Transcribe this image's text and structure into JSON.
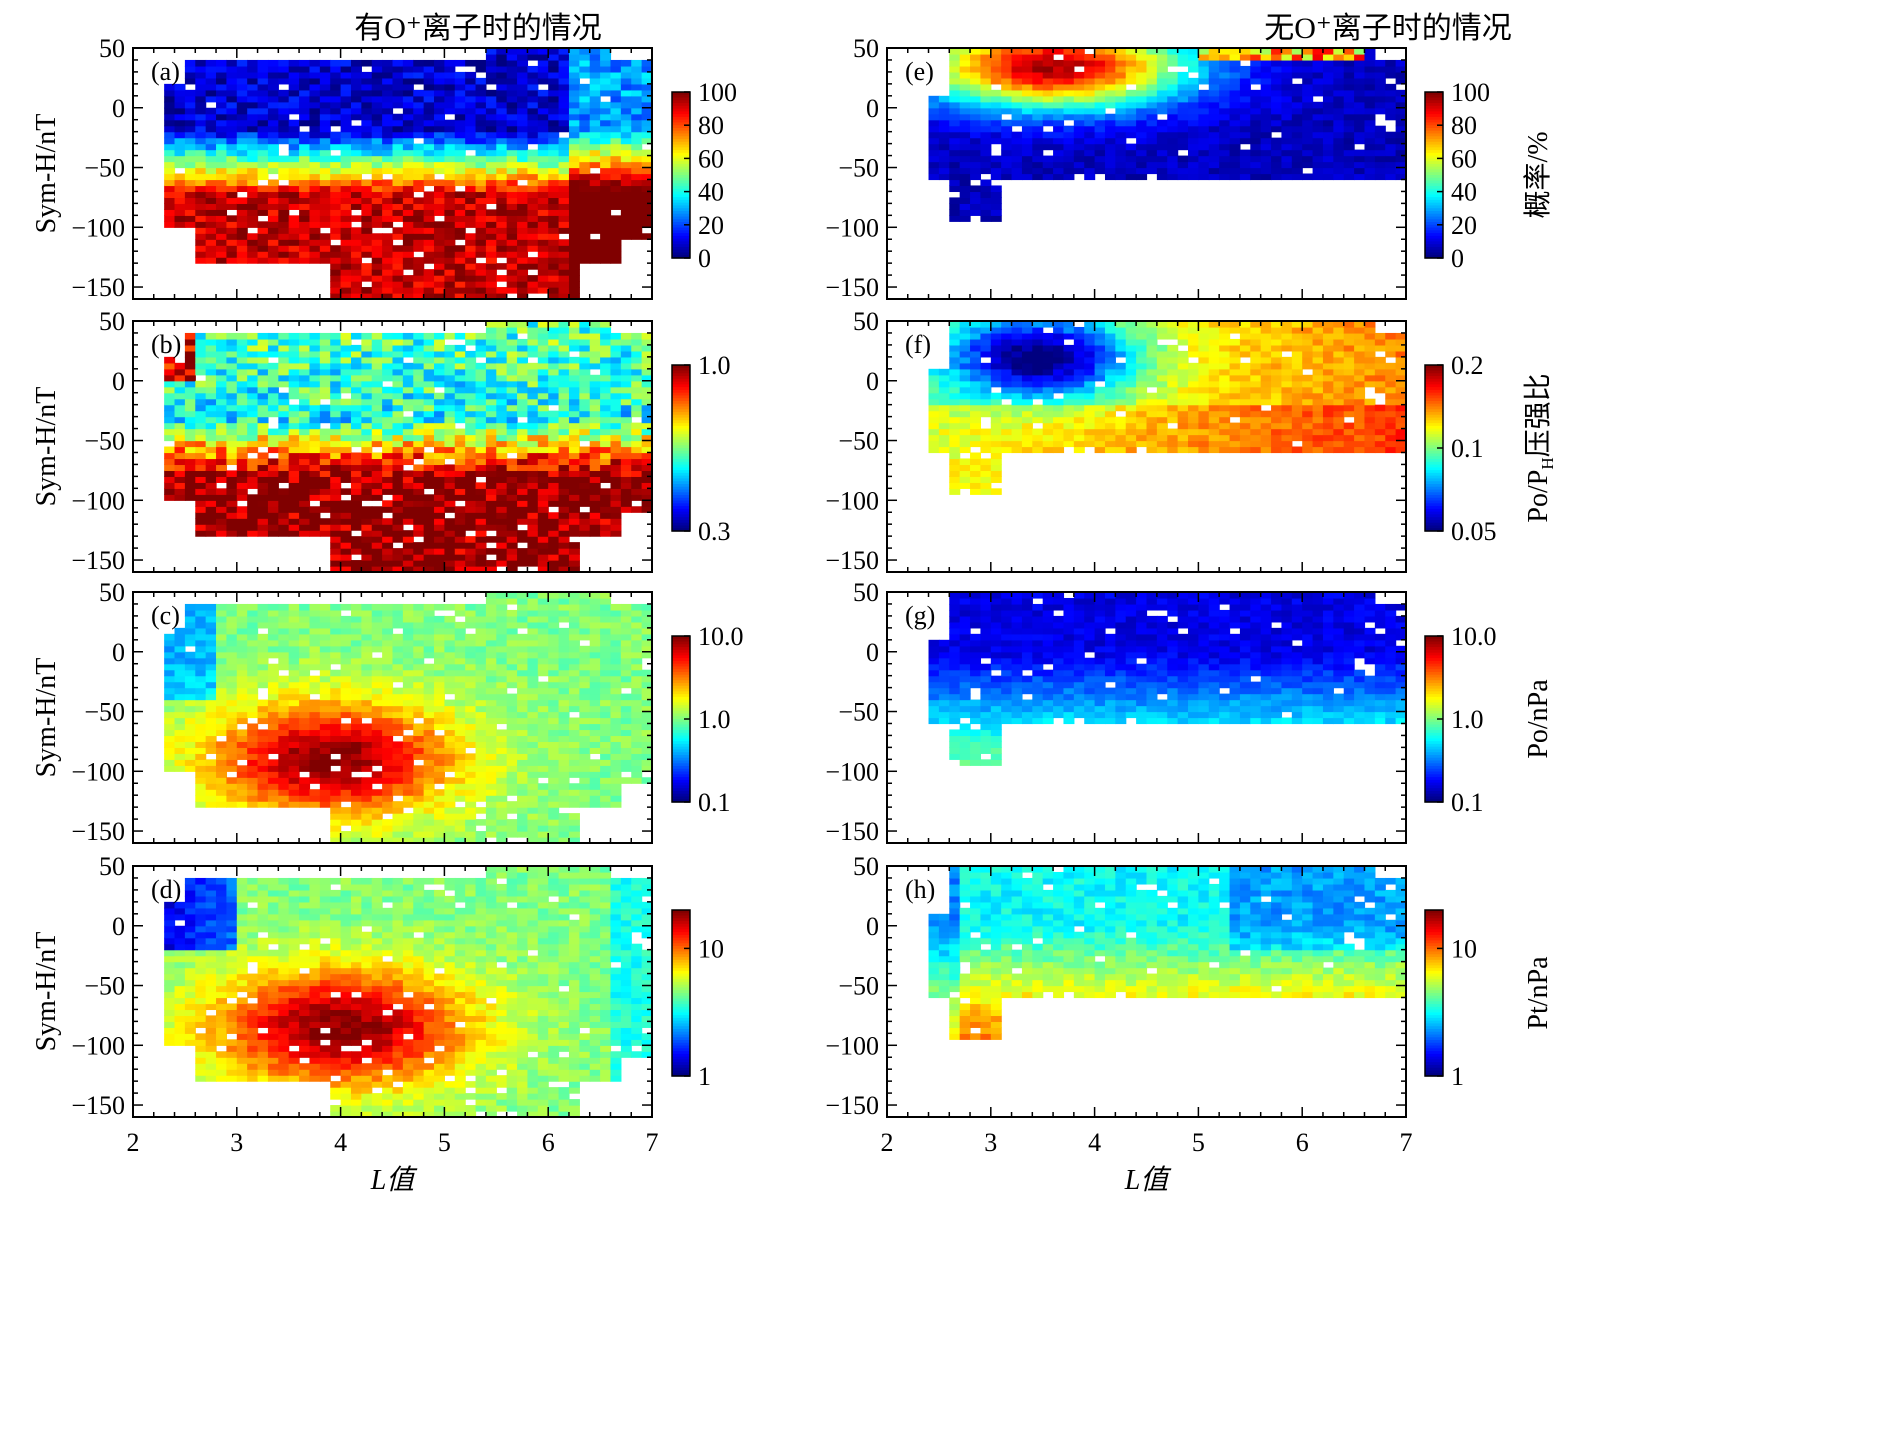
{
  "figure": {
    "column_titles": [
      "有O⁺离子时的情况",
      "无O⁺离子时的情况"
    ],
    "x_axis_label": "L值",
    "y_axis_label": "Sym-H/nT"
  },
  "chart_data": [
    {
      "type": "heatmap",
      "panel": "(a)",
      "column": 0,
      "row": 0,
      "pattern": "prob_with",
      "xlabel": "",
      "ylabel": "Sym-H/nT",
      "xlim": [
        2,
        7
      ],
      "ylim": [
        -160,
        50
      ],
      "xticks": [
        "2",
        "3",
        "4",
        "5",
        "6",
        "7"
      ],
      "yticks": [
        "50",
        "0",
        "−50",
        "−100",
        "−150"
      ],
      "colorbar": {
        "label": "",
        "scale": "linear",
        "range": [
          0,
          100
        ],
        "ticks": [
          "100",
          "80",
          "60",
          "40",
          "20",
          "0"
        ]
      }
    },
    {
      "type": "heatmap",
      "panel": "(b)",
      "column": 0,
      "row": 1,
      "pattern": "ratio_with",
      "xlabel": "",
      "ylabel": "Sym-H/nT",
      "xlim": [
        2,
        7
      ],
      "ylim": [
        -160,
        50
      ],
      "xticks": [
        "2",
        "3",
        "4",
        "5",
        "6",
        "7"
      ],
      "yticks": [
        "50",
        "0",
        "−50",
        "−100",
        "−150"
      ],
      "colorbar": {
        "label": "",
        "scale": "log",
        "range": [
          0.3,
          1.0
        ],
        "ticks": [
          "1.0",
          "0.3"
        ]
      }
    },
    {
      "type": "heatmap",
      "panel": "(c)",
      "column": 0,
      "row": 2,
      "pattern": "po_with",
      "xlabel": "",
      "ylabel": "Sym-H/nT",
      "xlim": [
        2,
        7
      ],
      "ylim": [
        -160,
        50
      ],
      "xticks": [
        "2",
        "3",
        "4",
        "5",
        "6",
        "7"
      ],
      "yticks": [
        "50",
        "0",
        "−50",
        "−100",
        "−150"
      ],
      "colorbar": {
        "label": "",
        "scale": "log",
        "range": [
          0.1,
          10.0
        ],
        "ticks": [
          "10.0",
          "1.0",
          "0.1"
        ]
      }
    },
    {
      "type": "heatmap",
      "panel": "(d)",
      "column": 0,
      "row": 3,
      "pattern": "pt_with",
      "xlabel": "L值",
      "ylabel": "Sym-H/nT",
      "xlim": [
        2,
        7
      ],
      "ylim": [
        -160,
        50
      ],
      "xticks": [
        "2",
        "3",
        "4",
        "5",
        "6",
        "7"
      ],
      "yticks": [
        "50",
        "0",
        "−50",
        "−100",
        "−150"
      ],
      "colorbar": {
        "label": "",
        "scale": "log",
        "range": [
          1,
          20
        ],
        "ticks": [
          "10",
          "1"
        ]
      }
    },
    {
      "type": "heatmap",
      "panel": "(e)",
      "column": 1,
      "row": 0,
      "pattern": "prob_without",
      "xlabel": "",
      "ylabel": "",
      "xlim": [
        2,
        7
      ],
      "ylim": [
        -160,
        50
      ],
      "xticks": [
        "2",
        "3",
        "4",
        "5",
        "6",
        "7"
      ],
      "yticks": [
        "50",
        "0",
        "−50",
        "−100",
        "−150"
      ],
      "colorbar": {
        "label": "概率/%",
        "scale": "linear",
        "range": [
          0,
          100
        ],
        "ticks": [
          "100",
          "80",
          "60",
          "40",
          "20",
          "0"
        ]
      }
    },
    {
      "type": "heatmap",
      "panel": "(f)",
      "column": 1,
      "row": 1,
      "pattern": "ratio_without",
      "xlabel": "",
      "ylabel": "",
      "xlim": [
        2,
        7
      ],
      "ylim": [
        -160,
        50
      ],
      "xticks": [
        "2",
        "3",
        "4",
        "5",
        "6",
        "7"
      ],
      "yticks": [
        "50",
        "0",
        "−50",
        "−100",
        "−150"
      ],
      "colorbar": {
        "label": "Po/P",
        "label_sub": "H",
        "label_suffix": "压强比",
        "scale": "log",
        "range": [
          0.05,
          0.2
        ],
        "ticks": [
          "0.2",
          "0.1",
          "0.05"
        ]
      }
    },
    {
      "type": "heatmap",
      "panel": "(g)",
      "column": 1,
      "row": 2,
      "pattern": "po_without",
      "xlabel": "",
      "ylabel": "",
      "xlim": [
        2,
        7
      ],
      "ylim": [
        -160,
        50
      ],
      "xticks": [
        "2",
        "3",
        "4",
        "5",
        "6",
        "7"
      ],
      "yticks": [
        "50",
        "0",
        "−50",
        "−100",
        "−150"
      ],
      "colorbar": {
        "label": "Po/nPa",
        "scale": "log",
        "range": [
          0.1,
          10.0
        ],
        "ticks": [
          "10.0",
          "1.0",
          "0.1"
        ]
      }
    },
    {
      "type": "heatmap",
      "panel": "(h)",
      "column": 1,
      "row": 3,
      "pattern": "pt_without",
      "xlabel": "L值",
      "ylabel": "",
      "xlim": [
        2,
        7
      ],
      "ylim": [
        -160,
        50
      ],
      "xticks": [
        "2",
        "3",
        "4",
        "5",
        "6",
        "7"
      ],
      "yticks": [
        "50",
        "0",
        "−50",
        "−100",
        "−150"
      ],
      "colorbar": {
        "label": "Pt/nPa",
        "scale": "log",
        "range": [
          1,
          20
        ],
        "ticks": [
          "10",
          "1"
        ]
      }
    }
  ]
}
